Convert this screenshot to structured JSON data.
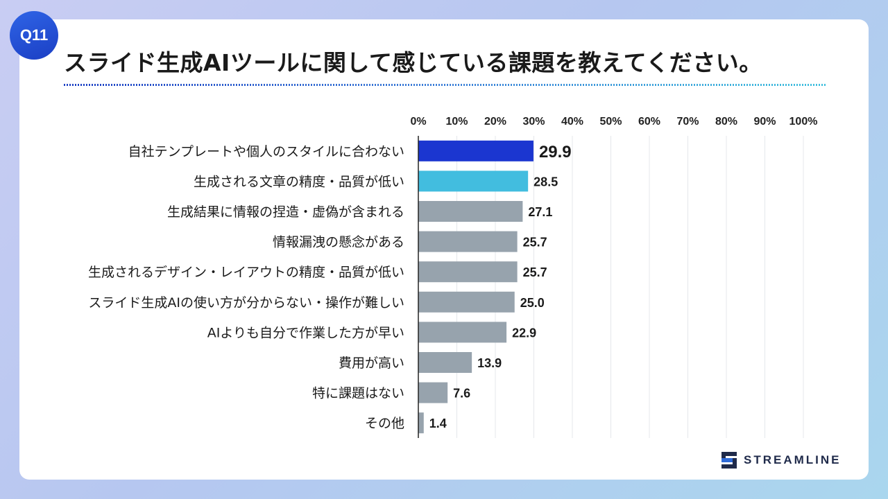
{
  "badge": "Q11",
  "title": "スライド生成AIツールに関して感じている課題を教えてください。",
  "brand": {
    "name": "STREAMLINE",
    "logo_icon": "streamline-logo-icon"
  },
  "colors": {
    "primary": "#1b36d0",
    "secondary": "#42bddf",
    "default": "#97a3ad"
  },
  "chart_data": {
    "type": "bar",
    "orientation": "horizontal",
    "title": "スライド生成AIツールに関して感じている課題を教えてください。",
    "categories": [
      "自社テンプレートや個人のスタイルに合わない",
      "生成される文章の精度・品質が低い",
      "生成結果に情報の捏造・虚偽が含まれる",
      "情報漏洩の懸念がある",
      "生成されるデザイン・レイアウトの精度・品質が低い",
      "スライド生成AIの使い方が分からない・操作が難しい",
      "AIよりも自分で作業した方が早い",
      "費用が高い",
      "特に課題はない",
      "その他"
    ],
    "values": [
      29.9,
      28.5,
      27.1,
      25.7,
      25.7,
      25.0,
      22.9,
      13.9,
      7.6,
      1.4
    ],
    "value_labels": [
      "29.9",
      "28.5",
      "27.1",
      "25.7",
      "25.7",
      "25.0",
      "22.9",
      "13.9",
      "7.6",
      "1.4"
    ],
    "highlight": [
      "primary",
      "secondary",
      "default",
      "default",
      "default",
      "default",
      "default",
      "default",
      "default",
      "default"
    ],
    "xlim": [
      0,
      100
    ],
    "xticks": [
      0,
      10,
      20,
      30,
      40,
      50,
      60,
      70,
      80,
      90,
      100
    ],
    "xtick_labels": [
      "0%",
      "10%",
      "20%",
      "30%",
      "40%",
      "50%",
      "60%",
      "70%",
      "80%",
      "90%",
      "100%"
    ],
    "xlabel": "",
    "ylabel": "",
    "grid": true,
    "tick_position": "top"
  }
}
